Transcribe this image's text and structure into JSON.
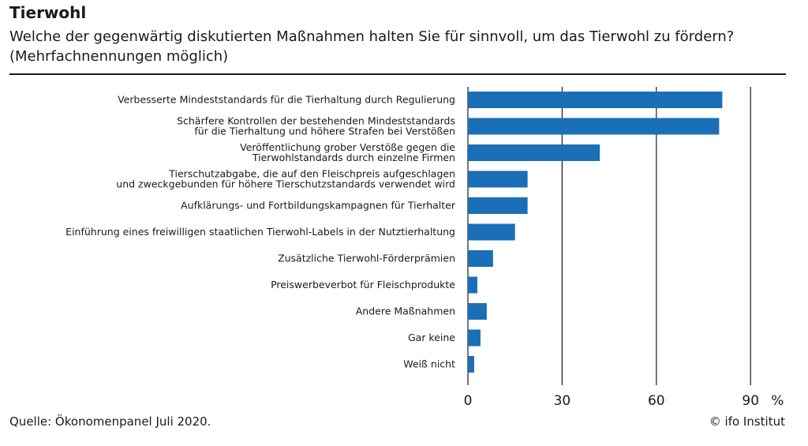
{
  "header": {
    "title": "Tierwohl",
    "subtitle": "Welche der gegenwärtig diskutierten Maßnahmen halten Sie für sinnvoll, um das Tierwohl zu fördern? (Mehrfachnennungen möglich)"
  },
  "footer": {
    "source": "Quelle: Ökonomenpanel Juli 2020.",
    "copyright": "© ifo Institut"
  },
  "colors": {
    "bar": "#1a6fb6",
    "gridline": "#1a1a1a",
    "text": "#1a1a1a"
  },
  "chart_data": {
    "type": "bar",
    "orientation": "horizontal",
    "categories": [
      [
        "Verbesserte Mindeststandards für die Tierhaltung durch Regulierung"
      ],
      [
        "Schärfere Kontrollen der bestehenden Mindeststandards",
        "für die Tierhaltung und höhere Strafen bei Verstößen"
      ],
      [
        "Veröffentlichung grober Verstöße gegen die",
        "Tierwohlstandards durch einzelne Firmen"
      ],
      [
        "Tierschutzabgabe, die auf den Fleischpreis aufgeschlagen",
        "und zweckgebunden für höhere Tierschutzstandards verwendet wird"
      ],
      [
        "Aufklärungs- und Fortbildungskampagnen für Tierhalter"
      ],
      [
        "Einführung eines freiwilligen staatlichen Tierwohl-Labels in der Nutztierhaltung"
      ],
      [
        "Zusätzliche Tierwohl-Förderprämien"
      ],
      [
        "Preiswerbeverbot für Fleischprodukte"
      ],
      [
        "Andere Maßnahmen"
      ],
      [
        "Gar keine"
      ],
      [
        "Weiß nicht"
      ]
    ],
    "values": [
      81,
      80,
      42,
      19,
      19,
      15,
      8,
      3,
      6,
      4,
      2
    ],
    "xlim": [
      0,
      100
    ],
    "xticks": [
      0,
      30,
      60,
      90
    ],
    "xtick_labels": [
      "0",
      "30",
      "60",
      "90"
    ],
    "xunit": "%",
    "grid": true
  }
}
